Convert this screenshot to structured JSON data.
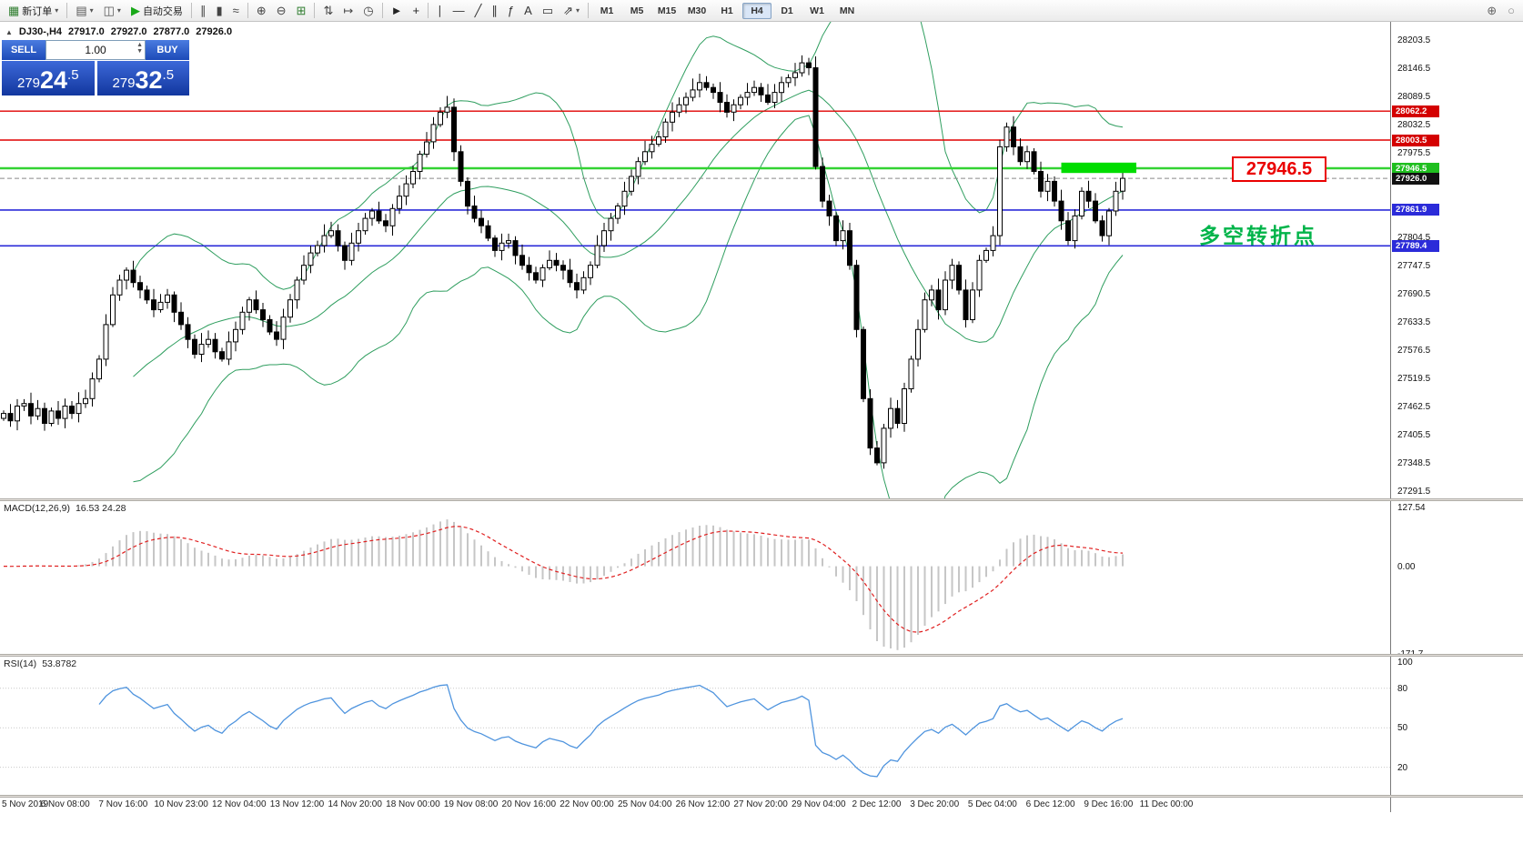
{
  "toolbar": {
    "timeframes": [
      "M1",
      "M5",
      "M15",
      "M30",
      "H1",
      "H4",
      "D1",
      "W1",
      "MN"
    ],
    "active_timeframe": "H4",
    "items": [
      {
        "t": "btn",
        "name": "new-order-button",
        "glyph": "▦",
        "color": "#2f7d2f",
        "label": "新订单",
        "caret": true
      },
      {
        "t": "sep"
      },
      {
        "t": "btn",
        "name": "charts-menu-button",
        "glyph": "▤",
        "color": "#555555",
        "caret": true
      },
      {
        "t": "btn",
        "name": "profiles-button",
        "glyph": "◫",
        "color": "#555555",
        "caret": true
      },
      {
        "t": "btn",
        "name": "autotrading-button",
        "glyph": "▶",
        "color": "#18a818",
        "label": "自动交易"
      },
      {
        "t": "sep"
      },
      {
        "t": "btn",
        "name": "chart-bars-button",
        "glyph": "∥",
        "color": "#444444"
      },
      {
        "t": "btn",
        "name": "chart-candles-button",
        "glyph": "▮",
        "color": "#444444"
      },
      {
        "t": "btn",
        "name": "chart-line-button",
        "glyph": "≈",
        "color": "#444444"
      },
      {
        "t": "sep"
      },
      {
        "t": "btn",
        "name": "zoom-in-button",
        "glyph": "⊕",
        "color": "#444444"
      },
      {
        "t": "btn",
        "name": "zoom-out-button",
        "glyph": "⊖",
        "color": "#444444"
      },
      {
        "t": "btn",
        "name": "tile-windows-button",
        "glyph": "⊞",
        "color": "#2f7d2f"
      },
      {
        "t": "sep"
      },
      {
        "t": "btn",
        "name": "arrange-windows-button",
        "glyph": "⇅",
        "color": "#444444"
      },
      {
        "t": "btn",
        "name": "autoscroll-button",
        "glyph": "↦",
        "color": "#444444"
      },
      {
        "t": "btn",
        "name": "chart-shift-button",
        "glyph": "◷",
        "color": "#444444"
      },
      {
        "t": "sep"
      },
      {
        "t": "btn",
        "name": "cursor-button",
        "glyph": "►",
        "color": "#222222"
      },
      {
        "t": "btn",
        "name": "crosshair-button",
        "glyph": "+",
        "color": "#222222"
      },
      {
        "t": "sep"
      },
      {
        "t": "btn",
        "name": "vertical-line-button",
        "glyph": "∣",
        "color": "#333333"
      },
      {
        "t": "btn",
        "name": "horizontal-line-button",
        "glyph": "―",
        "color": "#333333"
      },
      {
        "t": "btn",
        "name": "trendline-button",
        "glyph": "╱",
        "color": "#333333"
      },
      {
        "t": "btn",
        "name": "channel-button",
        "glyph": "∥",
        "color": "#333333"
      },
      {
        "t": "btn",
        "name": "fibonacci-button",
        "glyph": "ƒ",
        "color": "#333333"
      },
      {
        "t": "btn",
        "name": "text-button",
        "glyph": "A",
        "color": "#333333"
      },
      {
        "t": "btn",
        "name": "text-label-button",
        "glyph": "▭",
        "color": "#333333"
      },
      {
        "t": "btn",
        "name": "arrows-button",
        "glyph": "⇗",
        "color": "#333333",
        "caret": true
      },
      {
        "t": "sep"
      }
    ],
    "right_items": [
      {
        "t": "btn",
        "name": "magnifier-plus-button",
        "glyph": "⊕",
        "color": "#666666"
      },
      {
        "t": "btn",
        "name": "status-circle-button",
        "glyph": "○",
        "color": "#888888"
      }
    ]
  },
  "trade_panel": {
    "sell_label": "SELL",
    "buy_label": "BUY",
    "volume": "1.00",
    "sell_price": "27924.5",
    "buy_price": "27932.5"
  },
  "chart_info": {
    "collapse_arrow": "▲",
    "symbol_tf": "DJ30-,H4",
    "open": "27917.0",
    "high": "27927.0",
    "low": "27877.0",
    "close": "27926.0"
  },
  "annotations": {
    "price_label": "27946.5",
    "note_text": "多空转折点"
  },
  "chart_data": {
    "type": "candlestick",
    "symbol": "DJ30-",
    "timeframe": "H4",
    "last_ohlc": {
      "open": "27917.0",
      "high": "27927.0",
      "low": "27877.0",
      "close": "27926.0"
    },
    "price_range": [
      27278,
      28243
    ],
    "first_open": 27440,
    "closes": [
      27450,
      27435,
      27465,
      27470,
      27445,
      27460,
      27430,
      27455,
      27440,
      27465,
      27450,
      27470,
      27480,
      27520,
      27560,
      27630,
      27690,
      27720,
      27740,
      27715,
      27700,
      27680,
      27660,
      27675,
      27690,
      27655,
      27630,
      27600,
      27570,
      27590,
      27600,
      27575,
      27560,
      27595,
      27620,
      27655,
      27680,
      27660,
      27640,
      27615,
      27600,
      27645,
      27680,
      27720,
      27750,
      27775,
      27790,
      27810,
      27820,
      27790,
      27760,
      27795,
      27820,
      27845,
      27860,
      27840,
      27830,
      27865,
      27890,
      27915,
      27940,
      27975,
      28000,
      28035,
      28060,
      28070,
      27980,
      27920,
      27870,
      27845,
      27830,
      27805,
      27780,
      27795,
      27800,
      27770,
      27750,
      27735,
      27720,
      27745,
      27760,
      27750,
      27740,
      27715,
      27700,
      27725,
      27750,
      27790,
      27820,
      27845,
      27870,
      27900,
      27930,
      27960,
      27980,
      27995,
      28010,
      28040,
      28060,
      28075,
      28090,
      28105,
      28120,
      28110,
      28100,
      28080,
      28060,
      28075,
      28090,
      28100,
      28110,
      28095,
      28080,
      28100,
      28120,
      28130,
      28140,
      28160,
      28150,
      27950,
      27880,
      27850,
      27800,
      27820,
      27750,
      27620,
      27480,
      27380,
      27350,
      27420,
      27460,
      27430,
      27500,
      27560,
      27620,
      27680,
      27700,
      27660,
      27720,
      27750,
      27700,
      27640,
      27700,
      27760,
      27780,
      27810,
      27990,
      28030,
      27990,
      27960,
      27980,
      27940,
      27900,
      27920,
      27880,
      27840,
      27800,
      27850,
      27900,
      27880,
      27840,
      27810,
      27860,
      27900,
      27926
    ],
    "levels": [
      {
        "price": 28062.2,
        "label": "28062.2",
        "color": "#e00000",
        "width": 1.4,
        "style": "solid",
        "tag": "#d40000"
      },
      {
        "price": 28003.5,
        "label": "28003.5",
        "color": "#e00000",
        "width": 1.4,
        "style": "solid",
        "tag": "#d40000"
      },
      {
        "price": 27946.5,
        "label": "27946.5",
        "color": "#33d333",
        "width": 2.4,
        "style": "solid",
        "tag": "#1fbf1f"
      },
      {
        "price": 27926.0,
        "label": "27926.0",
        "color": "#8a8a8a",
        "width": 1,
        "style": "dash",
        "tag": "#111111",
        "current": true
      },
      {
        "price": 27861.9,
        "label": "27861.9",
        "color": "#2b2bd9",
        "width": 1.6,
        "style": "solid",
        "tag": "#2b2bd9"
      },
      {
        "price": 27789.4,
        "label": "27789.4",
        "color": "#2b2bd9",
        "width": 1.6,
        "style": "solid",
        "tag": "#2b2bd9"
      }
    ],
    "highlight_box": {
      "x1_bar": 155,
      "x2_bar": 166,
      "price_top": 27958,
      "price_bottom": 27937,
      "color": "#00dd00"
    },
    "y_ticks": [
      28203.5,
      28146.5,
      28089.5,
      28032.5,
      27975.5,
      27918.5,
      27861.5,
      27804.5,
      27747.5,
      27690.5,
      27633.5,
      27576.5,
      27519.5,
      27462.5,
      27405.5,
      27348.5,
      27291.5
    ],
    "x_labels": [
      "5 Nov 2019",
      "6 Nov 08:00",
      "7 Nov 16:00",
      "10 Nov 23:00",
      "12 Nov 04:00",
      "13 Nov 12:00",
      "14 Nov 20:00",
      "18 Nov 00:00",
      "19 Nov 08:00",
      "20 Nov 16:00",
      "22 Nov 00:00",
      "25 Nov 04:00",
      "26 Nov 12:00",
      "27 Nov 20:00",
      "29 Nov 04:00",
      "2 Dec 12:00",
      "3 Dec 20:00",
      "5 Dec 04:00",
      "6 Dec 12:00",
      "9 Dec 16:00",
      "11 Dec 00:00"
    ],
    "indicators": {
      "bollinger": {
        "period": 20,
        "deviation": 2,
        "color": "#2f9e5f"
      },
      "macd": {
        "title": "MACD(12,26,9)",
        "values_text": "16.53 24.28",
        "fast": 12,
        "slow": 26,
        "signal": 9,
        "axis_range": [
          -171.7,
          127.54
        ],
        "axis_labels": [
          {
            "v": 127.54,
            "t": "127.54"
          },
          {
            "v": 0,
            "t": "0.00"
          },
          {
            "v": -171.7,
            "t": "-171.7"
          }
        ],
        "histogram_color": "#c6c6c6",
        "signal_color": "#e02020"
      },
      "rsi": {
        "title": "RSI(14)",
        "value_text": "53.8782",
        "period": 14,
        "color": "#4f94de",
        "axis_labels": [
          100,
          80,
          50,
          20
        ],
        "level_lines": [
          80,
          50,
          20
        ]
      }
    }
  }
}
